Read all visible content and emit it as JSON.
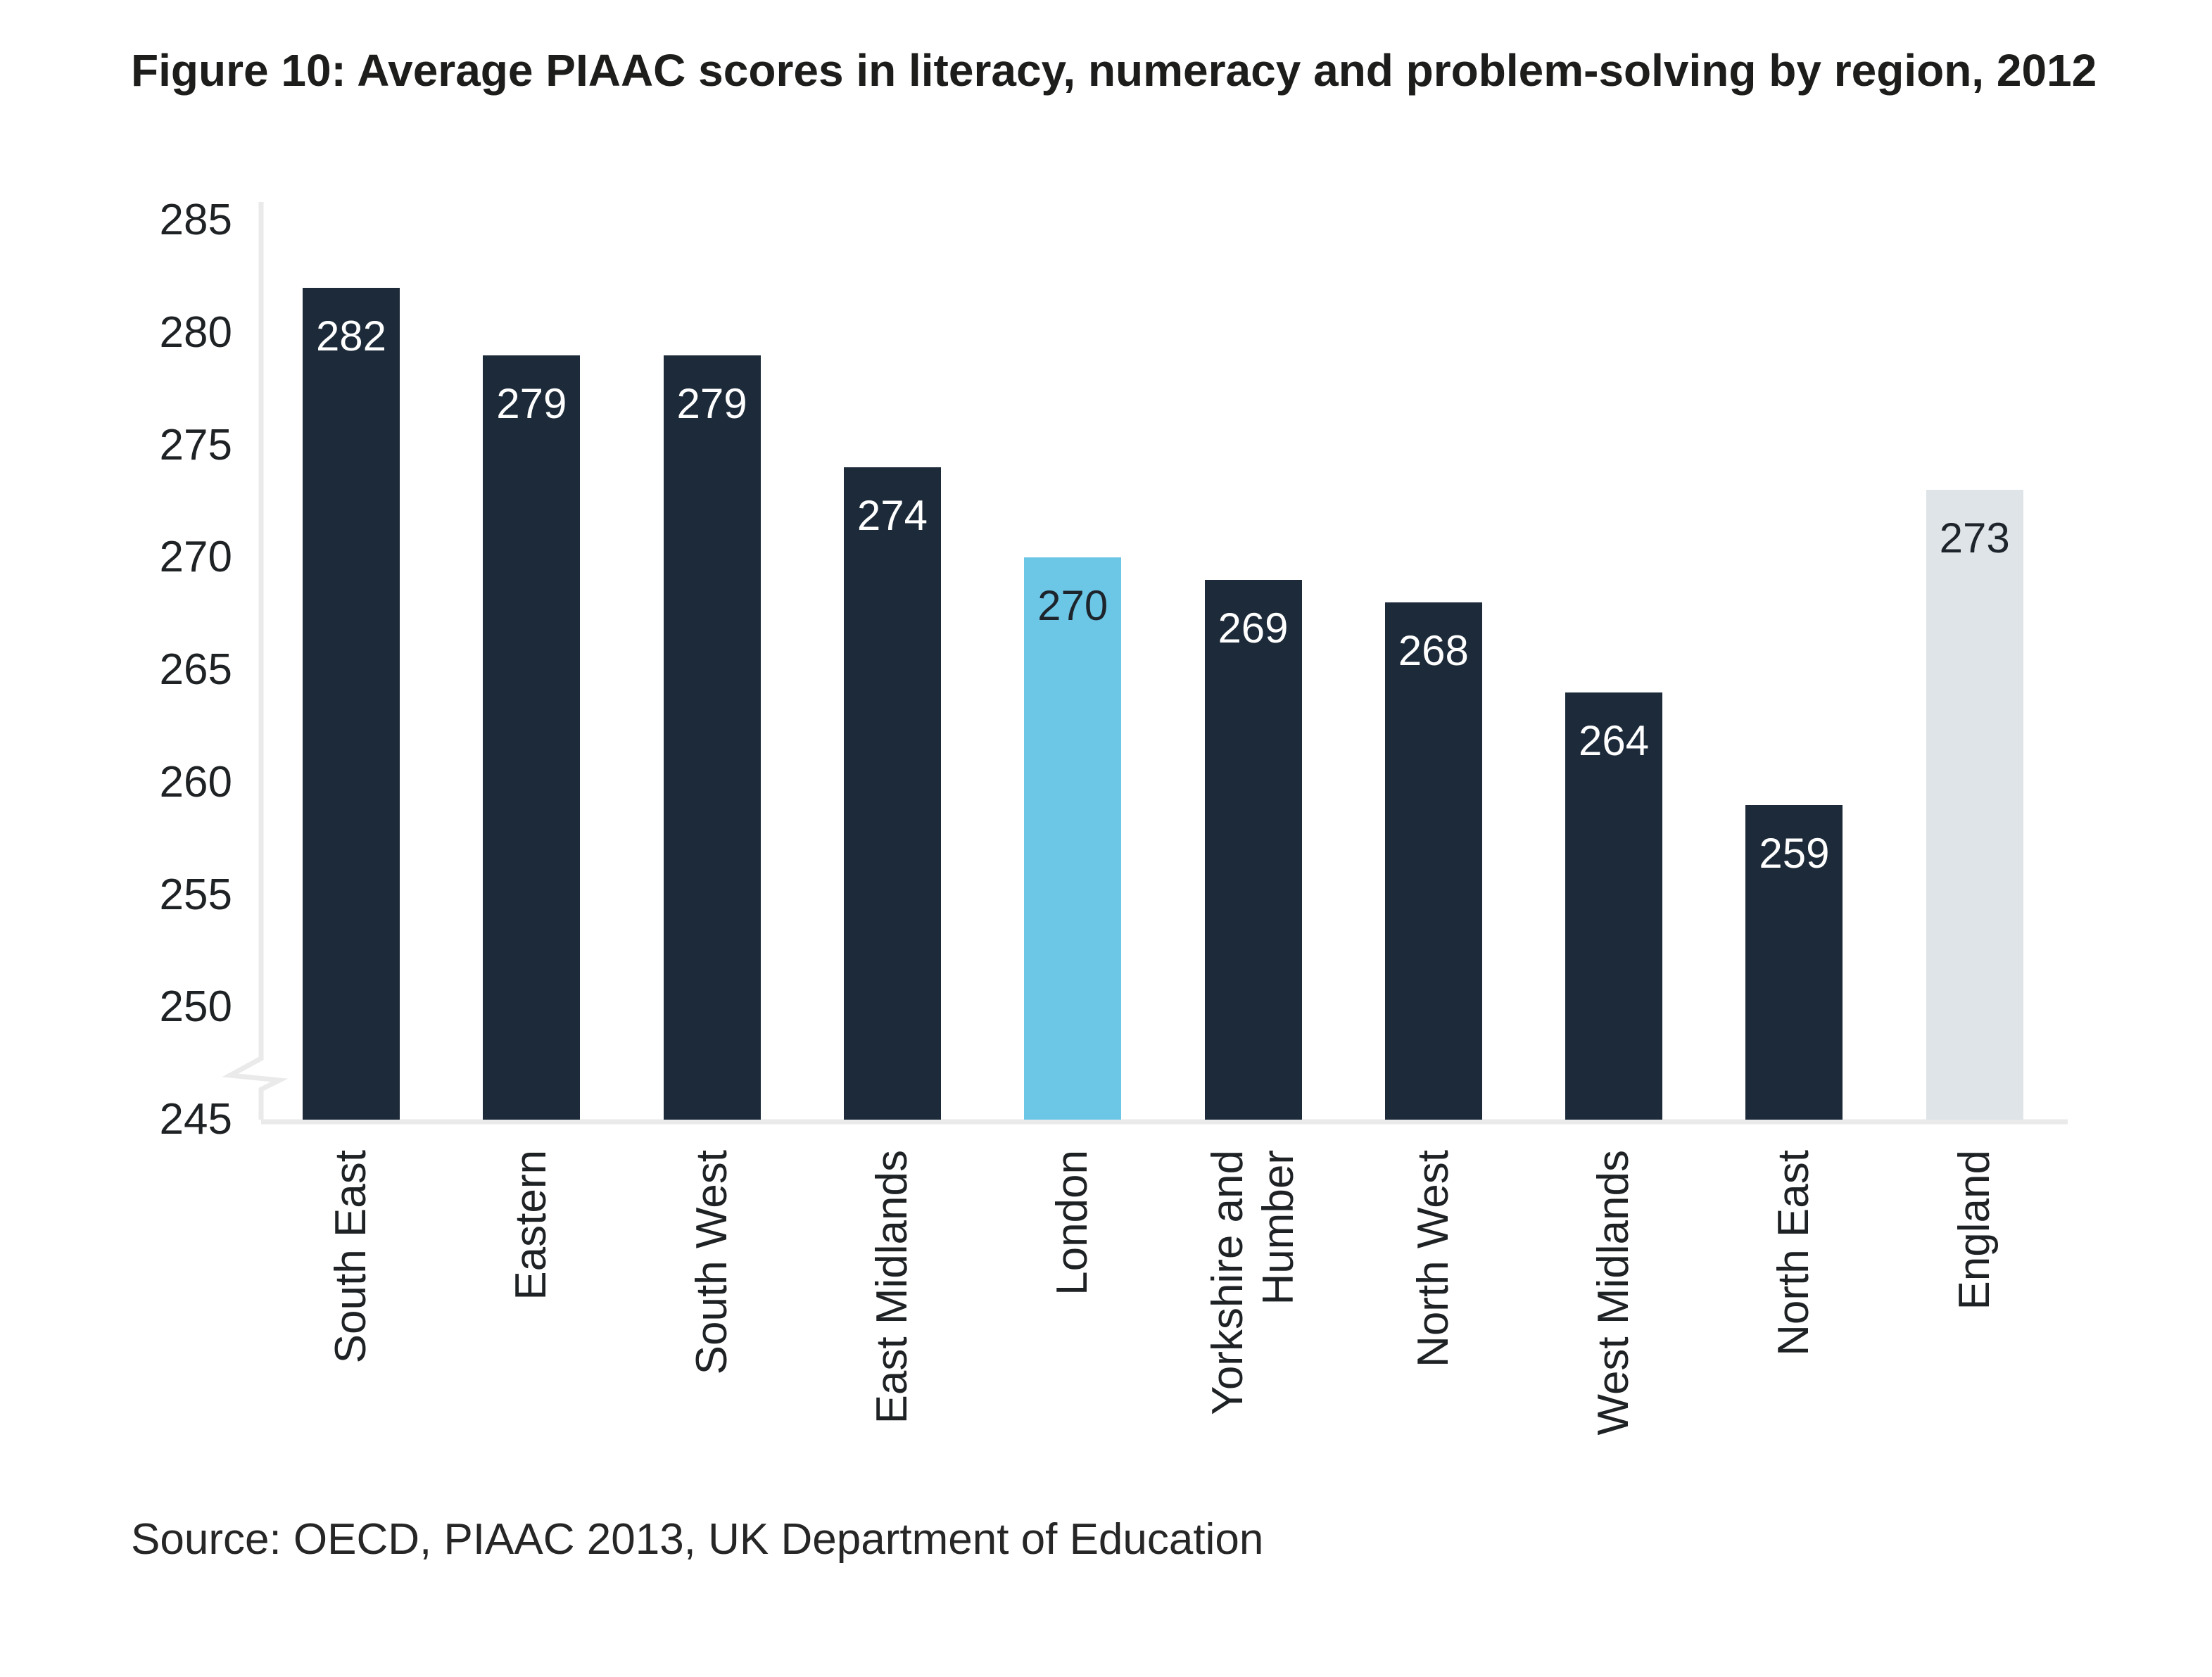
{
  "figure": {
    "title": "Figure 10: Average PIAAC scores in literacy, numeracy and problem-solving by region, 2012",
    "source": "Source: OECD, PIAAC 2013, UK Department of Education"
  },
  "chart_data": {
    "type": "bar",
    "title": "Figure 10: Average PIAAC scores in literacy, numeracy and problem-solving by region, 2012",
    "categories": [
      "South East",
      "Eastern",
      "South West",
      "East Midlands",
      "London",
      "Yorkshire and Humber",
      "North West",
      "West Midlands",
      "North East",
      "England"
    ],
    "values": [
      282,
      279,
      279,
      274,
      270,
      269,
      268,
      264,
      259,
      273
    ],
    "xlabel": "",
    "ylabel": "",
    "ylim": [
      245,
      285
    ],
    "yticks": [
      285,
      280,
      275,
      270,
      265,
      260,
      255,
      250,
      245
    ],
    "grid": false,
    "legend": false,
    "axis_break_at_bottom": true,
    "bar_colors": {
      "default": "#1c2a39",
      "London": "#6cc6e6",
      "England": "#dee4e7"
    },
    "value_label_colors": {
      "default": "#ffffff",
      "London": "#1e242b",
      "England": "#1e242b"
    },
    "axis_color": "#eaeaea",
    "tick_text_color": "#1f2224"
  }
}
